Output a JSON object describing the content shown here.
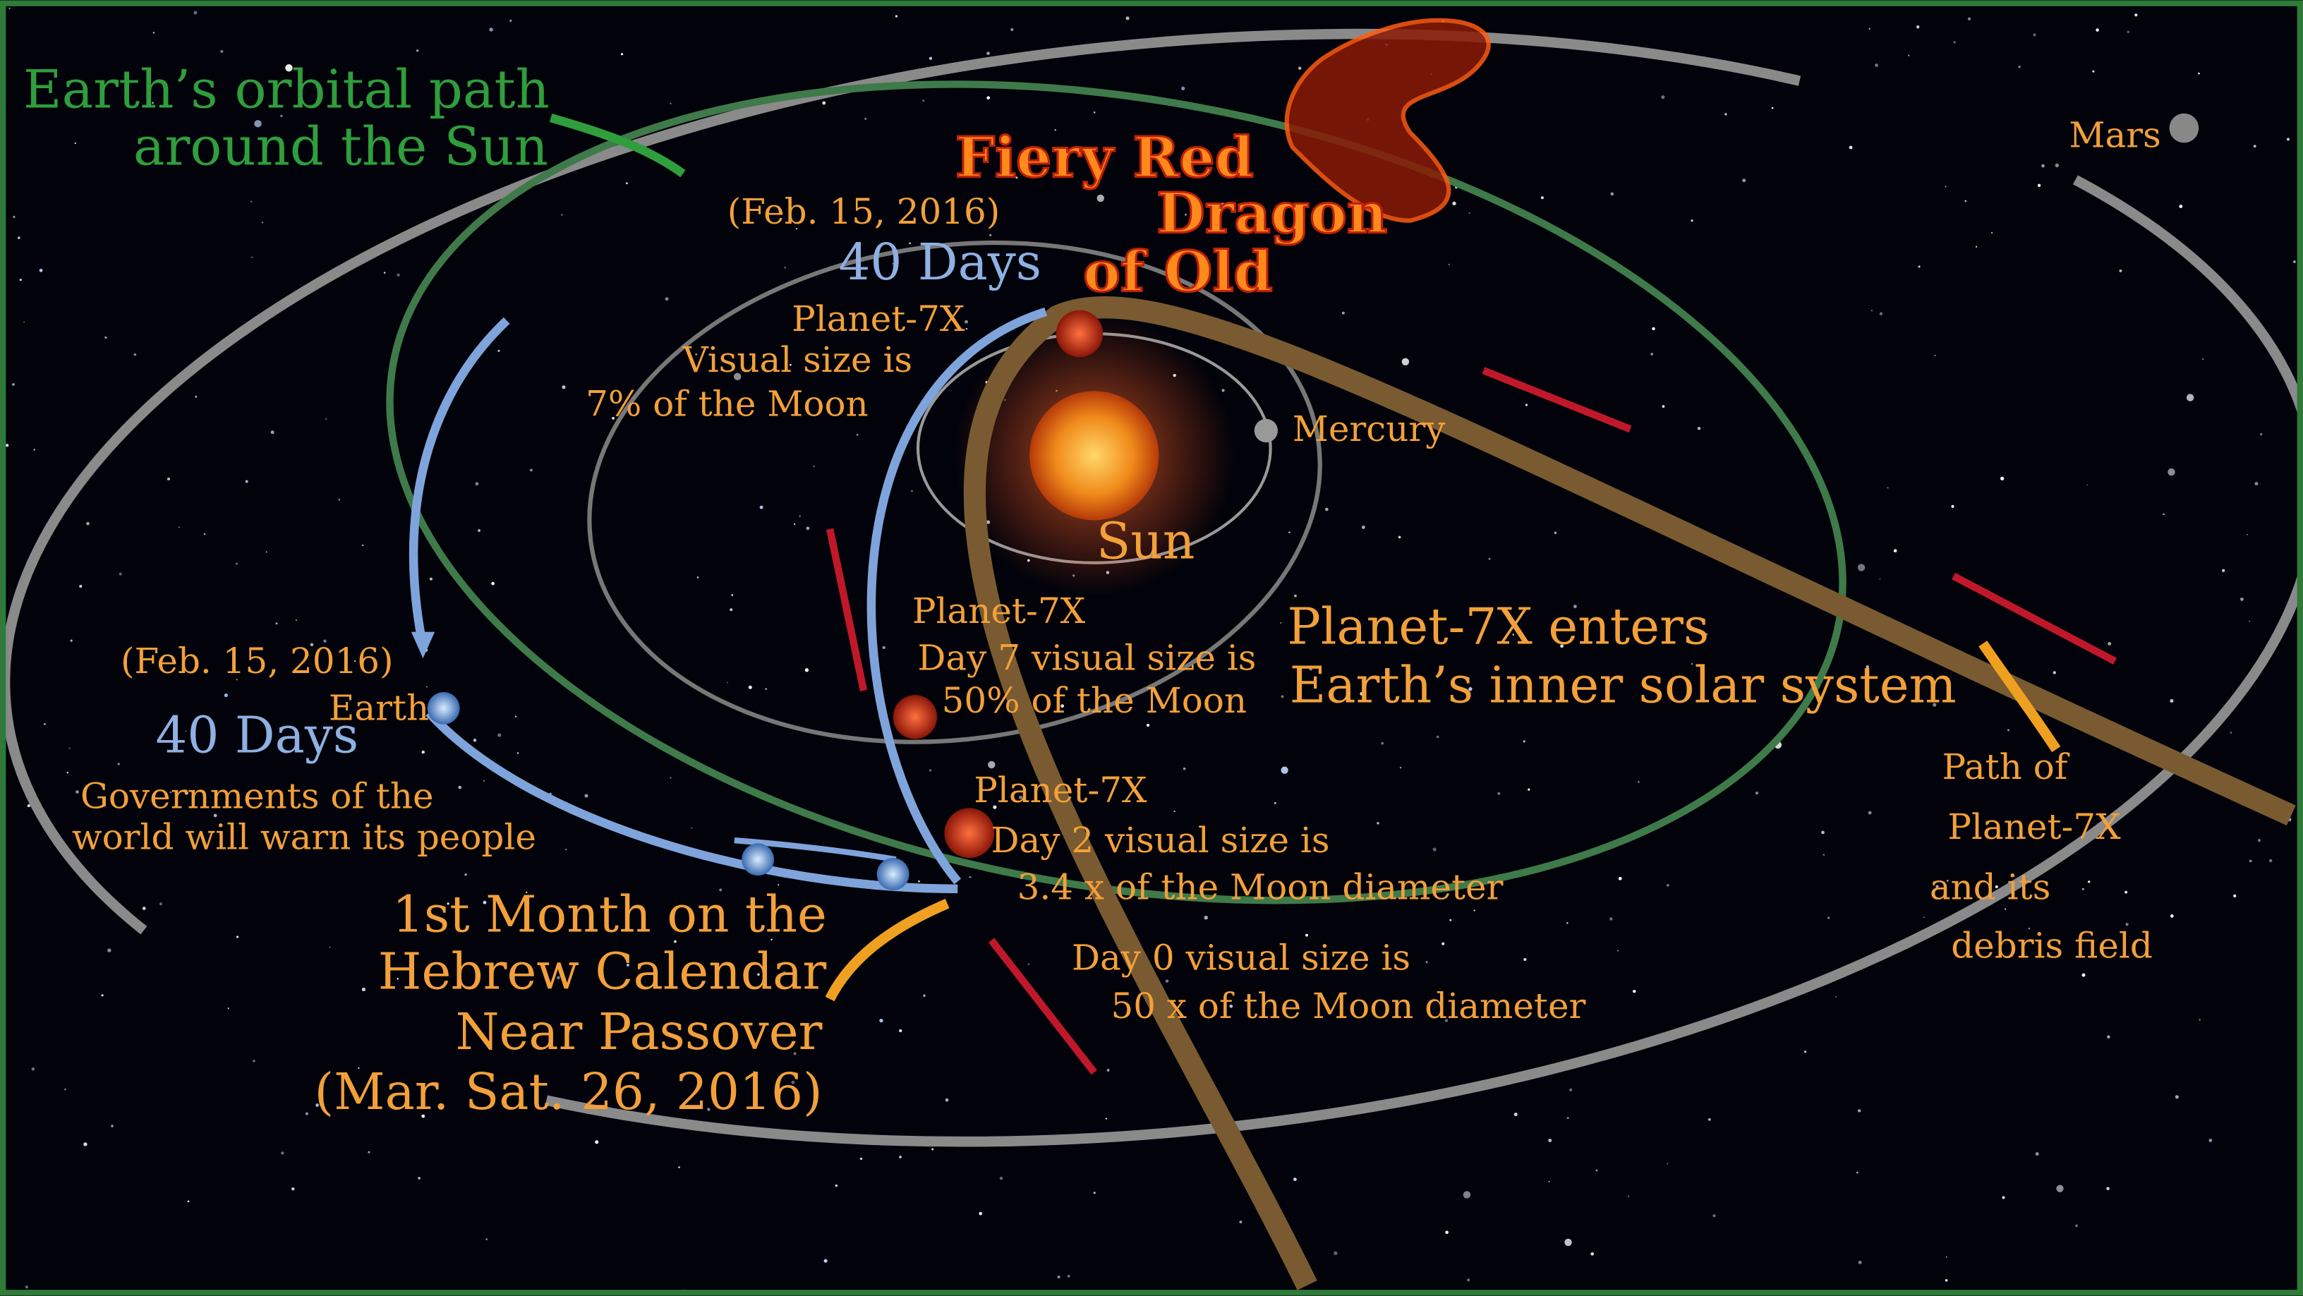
{
  "orbit_label": [
    "Earth’s orbital path",
    "around the Sun"
  ],
  "dragon_label": [
    "Fiery Red",
    "Dragon",
    "of Old"
  ],
  "top_date": "(Feb. 15, 2016)",
  "top_days": "40 Days",
  "planet_7x_far": [
    "Planet-7X",
    "Visual size is",
    "7% of the Moon"
  ],
  "mercury": "Mercury",
  "sun": "Sun",
  "mars": "Mars",
  "planet_7x_day7": [
    "Planet-7X",
    "Day 7 visual size is",
    "50% of the Moon"
  ],
  "enters_label": [
    "Planet-7X enters",
    "Earth’s inner solar system"
  ],
  "left_date": "(Feb. 15, 2016)",
  "earth": "Earth",
  "left_days": "40 Days",
  "governments": [
    "Governments of the",
    "world will warn its people"
  ],
  "planet_7x_day2": [
    "Planet-7X",
    "Day 2 visual size is",
    "3.4 x of the Moon diameter"
  ],
  "hebrew_calendar": [
    "1st Month on the",
    "Hebrew Calendar",
    "Near Passover",
    "(Mar. Sat. 26, 2016)"
  ],
  "day0": [
    "Day 0 visual size is",
    "50 x of the Moon diameter"
  ],
  "path_label": [
    "Path of",
    "Planet-7X",
    "and its",
    "debris field"
  ]
}
